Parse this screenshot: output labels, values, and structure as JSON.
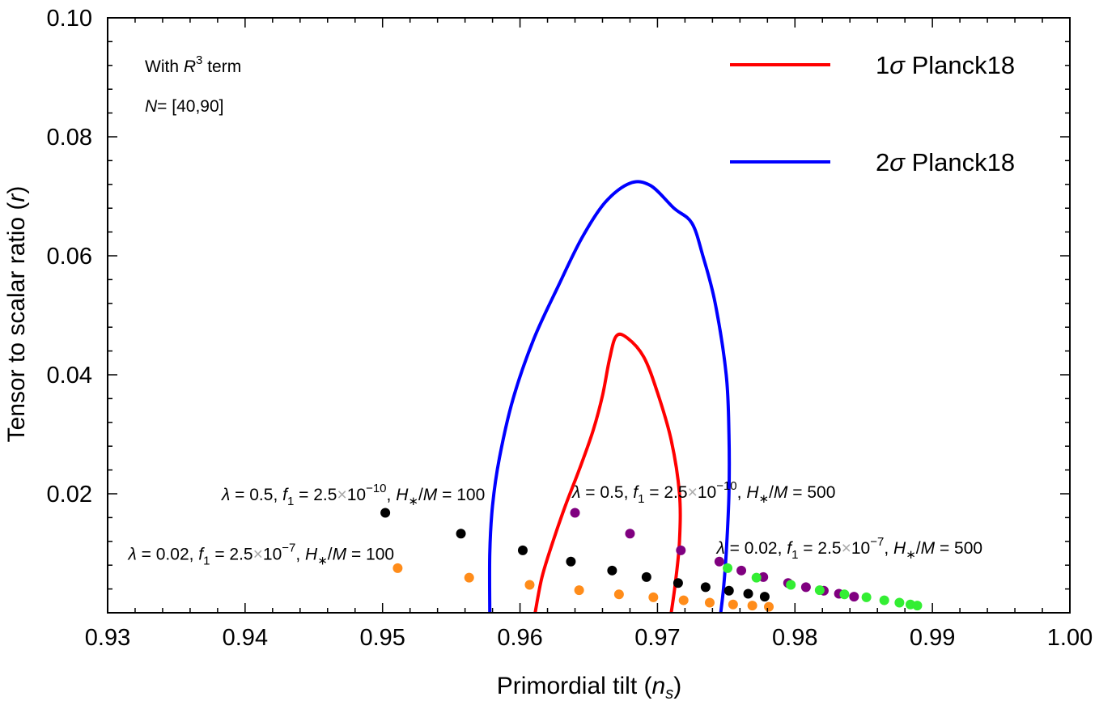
{
  "chart_data": {
    "type": "scatter",
    "xlabel": {
      "text": "Primordial tilt (",
      "var": "n",
      "sub": "s",
      "close": ")"
    },
    "ylabel": {
      "text": "Tensor to scalar ratio (",
      "var": "r",
      "close": ")"
    },
    "xlim": [
      0.93,
      1.0
    ],
    "ylim": [
      0.0,
      0.1
    ],
    "xticks": [
      "0.93",
      "0.94",
      "0.95",
      "0.96",
      "0.97",
      "0.98",
      "0.99",
      "1.00"
    ],
    "yticks": [
      "0.02",
      "0.04",
      "0.06",
      "0.08",
      "0.10"
    ],
    "grid": false,
    "legend_position": "top-right",
    "info": {
      "line1_prefix": "With ",
      "line1_var": "R",
      "line1_sup": "3",
      "line1_suffix": " term",
      "line2_var": "N",
      "line2_rest": "= [40,90]"
    },
    "contours": [
      {
        "name": "1σ Planck18",
        "legend_sym": "1",
        "legend_sigma": "σ",
        "legend_rest": " Planck18",
        "color": "#ff0000",
        "points": [
          [
            0.9611,
            0.0
          ],
          [
            0.9616,
            0.006
          ],
          [
            0.9624,
            0.012
          ],
          [
            0.9633,
            0.018
          ],
          [
            0.9643,
            0.024
          ],
          [
            0.9653,
            0.0305
          ],
          [
            0.966,
            0.0365
          ],
          [
            0.9665,
            0.0425
          ],
          [
            0.967,
            0.0465
          ],
          [
            0.9678,
            0.0462
          ],
          [
            0.969,
            0.043
          ],
          [
            0.97,
            0.037
          ],
          [
            0.971,
            0.029
          ],
          [
            0.9716,
            0.02
          ],
          [
            0.9716,
            0.012
          ],
          [
            0.9713,
            0.005
          ],
          [
            0.971,
            0.0
          ]
        ]
      },
      {
        "name": "2σ Planck18",
        "legend_sym": "2",
        "legend_sigma": "σ",
        "legend_rest": " Planck18",
        "color": "#0000ff",
        "points": [
          [
            0.9578,
            0.0
          ],
          [
            0.9578,
            0.01
          ],
          [
            0.958,
            0.018
          ],
          [
            0.9585,
            0.026
          ],
          [
            0.9595,
            0.036
          ],
          [
            0.961,
            0.046
          ],
          [
            0.9628,
            0.055
          ],
          [
            0.9645,
            0.063
          ],
          [
            0.9662,
            0.069
          ],
          [
            0.968,
            0.0722
          ],
          [
            0.9695,
            0.0718
          ],
          [
            0.9712,
            0.068
          ],
          [
            0.9725,
            0.0655
          ],
          [
            0.9733,
            0.06
          ],
          [
            0.9742,
            0.052
          ],
          [
            0.975,
            0.04
          ],
          [
            0.9752,
            0.03
          ],
          [
            0.9752,
            0.02
          ],
          [
            0.975,
            0.01
          ],
          [
            0.9748,
            0.004
          ],
          [
            0.9746,
            0.0
          ]
        ]
      }
    ],
    "series": [
      {
        "color": "#000000",
        "x": [
          0.9502,
          0.9557,
          0.9602,
          0.9637,
          0.9667,
          0.9692,
          0.9715,
          0.9735,
          0.9752,
          0.9766,
          0.9778
        ],
        "y": [
          0.0168,
          0.0133,
          0.0105,
          0.0086,
          0.0071,
          0.006,
          0.005,
          0.0043,
          0.0037,
          0.0032,
          0.0027
        ]
      },
      {
        "color": "#ff8c1a",
        "x": [
          0.9511,
          0.9563,
          0.9607,
          0.9643,
          0.9672,
          0.9697,
          0.9719,
          0.9738,
          0.9755,
          0.9769,
          0.9781
        ],
        "y": [
          0.0075,
          0.0059,
          0.0047,
          0.0038,
          0.0031,
          0.0026,
          0.0021,
          0.0017,
          0.0014,
          0.0012,
          0.001
        ]
      },
      {
        "color": "#800080",
        "x": [
          0.964,
          0.968,
          0.9717,
          0.9745,
          0.9761,
          0.9777,
          0.9795,
          0.9808,
          0.9821,
          0.9832,
          0.9843
        ],
        "y": [
          0.0168,
          0.0133,
          0.0105,
          0.0086,
          0.0071,
          0.006,
          0.005,
          0.0043,
          0.0037,
          0.0032,
          0.0027
        ]
      },
      {
        "color": "#33ee33",
        "x": [
          0.9751,
          0.9772,
          0.9797,
          0.9818,
          0.9836,
          0.9852,
          0.9865,
          0.9876,
          0.9884,
          0.9889
        ],
        "y": [
          0.0075,
          0.0059,
          0.0047,
          0.0038,
          0.0031,
          0.0026,
          0.0021,
          0.0017,
          0.0014,
          0.0012
        ]
      }
    ],
    "annotations": [
      {
        "lam": "λ",
        "lamval": " = 0.5, ",
        "f": "f",
        "fsub": "1",
        "fval": " = 2.5",
        "times": "×",
        "ten": "10",
        "exp": "−10",
        "comma": ", ",
        "H": "H",
        "Hsub": "∗",
        "slash": "/",
        "M": "M",
        "Mval": " = 100",
        "anchor_x": 0.9383,
        "anchor_y": 0.0189
      },
      {
        "lam": "λ",
        "lamval": " = 0.02, ",
        "f": "f",
        "fsub": "1",
        "fval": " = 2.5",
        "times": "×",
        "ten": "10",
        "exp": "−7",
        "comma": ", ",
        "H": "H",
        "Hsub": "∗",
        "slash": "/",
        "M": "M",
        "Mval": " = 100",
        "anchor_x": 0.9315,
        "anchor_y": 0.0089
      },
      {
        "lam": "λ",
        "lamval": " = 0.5, ",
        "f": "f",
        "fsub": "1",
        "fval": " = 2.5",
        "times": "×",
        "ten": "10",
        "exp": "−10",
        "comma": ", ",
        "H": "H",
        "Hsub": "∗",
        "slash": "/",
        "M": "M",
        "Mval": " = 500",
        "anchor_x": 0.9638,
        "anchor_y": 0.0193
      },
      {
        "lam": "λ",
        "lamval": " = 0.02, ",
        "f": "f",
        "fsub": "1",
        "fval": " = 2.5",
        "times": "×",
        "ten": "10",
        "exp": "−7",
        "comma": ", ",
        "H": "H",
        "Hsub": "∗",
        "slash": "/",
        "M": "M",
        "Mval": " = 500",
        "anchor_x": 0.9743,
        "anchor_y": 0.0099
      }
    ]
  }
}
